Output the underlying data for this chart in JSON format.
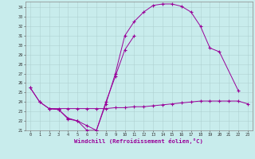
{
  "bg_color": "#c8ecec",
  "line_color": "#990099",
  "xlabel": "Windchill (Refroidissement éolien,°C)",
  "xlim": [
    -0.5,
    23.5
  ],
  "ylim": [
    21,
    34.6
  ],
  "grid_color": "#b0c8c8",
  "line1": {
    "x": [
      0,
      1,
      2,
      3,
      4,
      5,
      6,
      7,
      8,
      9,
      10,
      11,
      12,
      13,
      14,
      15,
      16,
      17,
      18,
      19,
      20,
      22
    ],
    "y": [
      25.5,
      24.0,
      23.3,
      23.2,
      22.2,
      22.0,
      21.0,
      21.0,
      23.8,
      27.0,
      31.0,
      32.5,
      33.5,
      34.2,
      34.35,
      34.35,
      34.1,
      33.5,
      32.0,
      29.7,
      29.3,
      25.2
    ]
  },
  "line2": {
    "x": [
      0,
      1,
      2,
      3,
      4,
      5,
      6,
      7,
      8,
      9,
      10,
      11,
      12,
      13,
      14,
      15,
      16,
      17,
      18,
      19,
      20,
      21,
      22,
      23
    ],
    "y": [
      25.5,
      24.0,
      23.3,
      23.3,
      23.3,
      23.3,
      23.3,
      23.3,
      23.3,
      23.4,
      23.4,
      23.5,
      23.5,
      23.6,
      23.7,
      23.8,
      23.9,
      24.0,
      24.1,
      24.1,
      24.1,
      24.1,
      24.1,
      23.8
    ]
  },
  "line3": {
    "x": [
      2,
      3,
      4,
      5,
      6,
      7,
      8,
      9,
      10,
      11
    ],
    "y": [
      23.3,
      23.2,
      22.3,
      22.0,
      21.5,
      21.0,
      24.0,
      26.7,
      29.5,
      31.0
    ]
  }
}
